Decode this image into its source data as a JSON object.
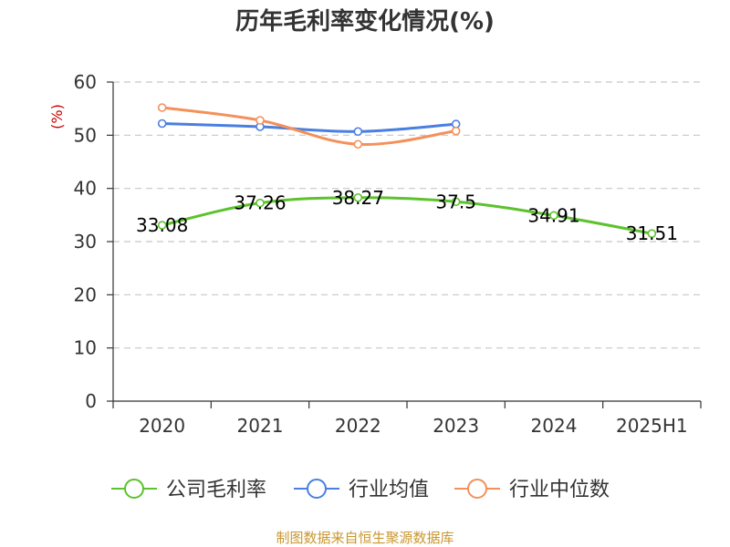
{
  "chart_data": {
    "type": "line",
    "title": "历年毛利率变化情况(%)",
    "ylabel": "(%)",
    "categories": [
      "2020",
      "2021",
      "2022",
      "2023",
      "2024",
      "2025H1"
    ],
    "ylim": [
      0,
      60
    ],
    "yticks": [
      0,
      10,
      20,
      30,
      40,
      50,
      60
    ],
    "grid": true,
    "legend_position": "bottom",
    "series": [
      {
        "name": "公司毛利率",
        "values": [
          33.08,
          37.26,
          38.27,
          37.5,
          34.91,
          31.51
        ],
        "color": "#5cc22e",
        "show_labels": true
      },
      {
        "name": "行业均值",
        "values": [
          52.2,
          51.6,
          50.7,
          52.1,
          null,
          null
        ],
        "color": "#4a7fe0",
        "show_labels": false
      },
      {
        "name": "行业中位数",
        "values": [
          55.2,
          52.8,
          48.3,
          50.8,
          null,
          null
        ],
        "color": "#f4905a",
        "show_labels": false
      }
    ],
    "labels_text": [
      "33.08",
      "37.26",
      "38.27",
      "37.5",
      "34.91",
      "31.51"
    ]
  },
  "source": "制图数据来自恒生聚源数据库",
  "colors": {
    "ylabel": "#cc0000",
    "source": "#c8972f",
    "grid": "#c8c8c8",
    "axis": "#333333"
  }
}
